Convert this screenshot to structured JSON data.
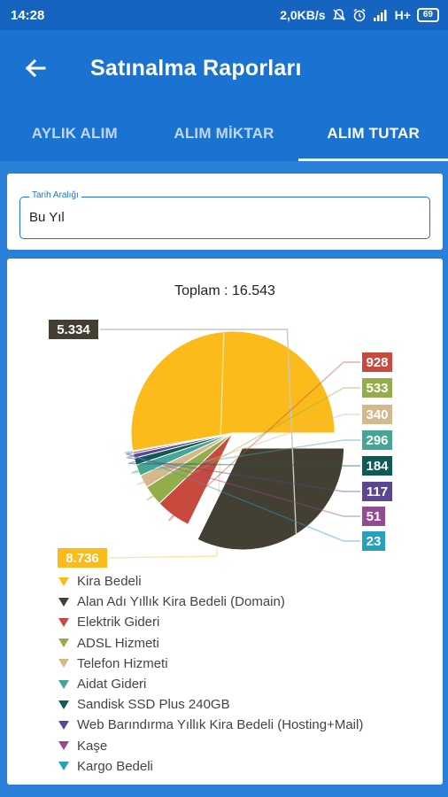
{
  "status_bar": {
    "time": "14:28",
    "speed": "2,0KB/s",
    "network": "H+",
    "battery": "69"
  },
  "app_bar": {
    "title": "Satınalma Raporları",
    "back_icon": "arrow-left-icon"
  },
  "tabs": [
    {
      "label": "AYLIK ALIM",
      "active": false
    },
    {
      "label": "ALIM MİKTAR",
      "active": false
    },
    {
      "label": "ALIM TUTAR",
      "active": true
    }
  ],
  "filter": {
    "label": "Tarih Aralığı",
    "value": "Bu Yıl"
  },
  "chart_data": {
    "type": "pie",
    "title": "Toplam : 16.543",
    "categories": [
      "Kira Bedeli",
      "Alan Adı Yıllık Kira Bedeli (Domain)",
      "Elektrik Gideri",
      "ADSL Hizmeti",
      "Telefon Hizmeti",
      "Aidat Gideri",
      "Sandisk SSD Plus 240GB",
      "Web Barındırma Yıllık Kira Bedeli (Hosting+Mail)",
      "Kaşe",
      "Kargo Bedeli"
    ],
    "values": [
      8736,
      5334,
      928,
      533,
      340,
      296,
      184,
      117,
      51,
      23
    ],
    "value_labels": [
      "8.736",
      "5.334",
      "928",
      "533",
      "340",
      "296",
      "184",
      "117",
      "51",
      "23"
    ],
    "colors": [
      "#fbbc1b",
      "#443f33",
      "#c84a3f",
      "#94ad4b",
      "#d4b98c",
      "#47a596",
      "#0e5a56",
      "#5b478f",
      "#934b93",
      "#25a0bd"
    ],
    "exploded_slice": 1,
    "legend_position": "bottom"
  }
}
